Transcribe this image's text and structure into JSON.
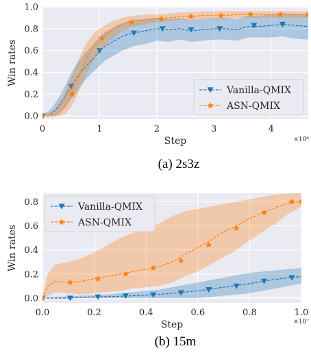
{
  "colors": {
    "vanilla": "#1f77b4",
    "asn": "#ff7f0e",
    "grid": "#ffffff",
    "background": "#eaeaf2"
  },
  "chart_data": [
    {
      "type": "line",
      "caption": "(a) 2s3z",
      "xlabel": "Step",
      "ylabel": "Win rates",
      "x_multiplier": "×10⁶",
      "xlim": [
        0,
        4.65
      ],
      "ylim": [
        -0.03,
        1.0
      ],
      "xticks": [
        "0",
        "1",
        "2",
        "3",
        "4"
      ],
      "xtick_values": [
        0,
        1,
        2,
        3,
        4
      ],
      "yticks": [
        "0.0",
        "0.2",
        "0.4",
        "0.6",
        "0.8",
        "1.0"
      ],
      "ytick_values": [
        0,
        0.2,
        0.4,
        0.6,
        0.8,
        1.0
      ],
      "grid": true,
      "legend_position": "lower-right",
      "series": [
        {
          "name": "Vanilla-QMIX",
          "color": "vanilla",
          "marker": "triangle-down",
          "x": [
            0,
            0.1,
            0.2,
            0.3,
            0.4,
            0.5,
            0.6,
            0.7,
            0.8,
            0.9,
            1.0,
            1.1,
            1.2,
            1.3,
            1.4,
            1.5,
            1.6,
            1.8,
            2.0,
            2.2,
            2.4,
            2.6,
            2.8,
            3.0,
            3.2,
            3.4,
            3.6,
            3.8,
            4.0,
            4.2,
            4.4,
            4.65
          ],
          "y": [
            0,
            0.0,
            0.04,
            0.1,
            0.18,
            0.27,
            0.35,
            0.42,
            0.48,
            0.53,
            0.6,
            0.64,
            0.67,
            0.7,
            0.73,
            0.75,
            0.76,
            0.78,
            0.8,
            0.79,
            0.8,
            0.78,
            0.79,
            0.8,
            0.8,
            0.79,
            0.82,
            0.82,
            0.83,
            0.84,
            0.83,
            0.82
          ],
          "lower": [
            0,
            0.0,
            0.0,
            0.03,
            0.08,
            0.15,
            0.22,
            0.3,
            0.36,
            0.41,
            0.46,
            0.51,
            0.54,
            0.57,
            0.6,
            0.62,
            0.64,
            0.66,
            0.69,
            0.68,
            0.7,
            0.68,
            0.69,
            0.7,
            0.7,
            0.69,
            0.72,
            0.72,
            0.72,
            0.73,
            0.71,
            0.7
          ],
          "upper": [
            0.02,
            0.04,
            0.1,
            0.18,
            0.28,
            0.39,
            0.48,
            0.55,
            0.61,
            0.66,
            0.73,
            0.77,
            0.8,
            0.83,
            0.85,
            0.87,
            0.88,
            0.89,
            0.9,
            0.89,
            0.9,
            0.88,
            0.89,
            0.9,
            0.9,
            0.89,
            0.92,
            0.92,
            0.93,
            0.94,
            0.93,
            0.93
          ],
          "marker_x": [
            0,
            0.5,
            1.0,
            1.6,
            2.1,
            2.6,
            3.1,
            3.7,
            4.2
          ],
          "marker_y": [
            0,
            0.27,
            0.6,
            0.76,
            0.8,
            0.79,
            0.8,
            0.83,
            0.84
          ]
        },
        {
          "name": "ASN-QMIX",
          "color": "asn",
          "marker": "star",
          "x": [
            0,
            0.1,
            0.2,
            0.3,
            0.4,
            0.5,
            0.6,
            0.7,
            0.8,
            0.9,
            1.0,
            1.1,
            1.2,
            1.3,
            1.4,
            1.5,
            1.6,
            1.8,
            2.0,
            2.2,
            2.4,
            2.6,
            2.8,
            3.0,
            3.2,
            3.4,
            3.6,
            3.8,
            4.0,
            4.2,
            4.4,
            4.65
          ],
          "y": [
            0,
            0.0,
            0.0,
            0.03,
            0.1,
            0.2,
            0.32,
            0.45,
            0.56,
            0.64,
            0.7,
            0.74,
            0.78,
            0.81,
            0.84,
            0.86,
            0.87,
            0.88,
            0.89,
            0.9,
            0.91,
            0.91,
            0.92,
            0.92,
            0.92,
            0.93,
            0.93,
            0.93,
            0.93,
            0.93,
            0.93,
            0.93
          ],
          "lower": [
            0,
            0.0,
            0.0,
            0.0,
            0.02,
            0.08,
            0.18,
            0.3,
            0.42,
            0.52,
            0.6,
            0.65,
            0.7,
            0.74,
            0.78,
            0.8,
            0.82,
            0.84,
            0.86,
            0.87,
            0.88,
            0.88,
            0.89,
            0.89,
            0.89,
            0.9,
            0.9,
            0.9,
            0.9,
            0.9,
            0.9,
            0.9
          ],
          "upper": [
            0.01,
            0.02,
            0.05,
            0.12,
            0.22,
            0.35,
            0.48,
            0.6,
            0.69,
            0.76,
            0.8,
            0.83,
            0.86,
            0.88,
            0.9,
            0.91,
            0.92,
            0.93,
            0.93,
            0.94,
            0.95,
            0.95,
            0.96,
            0.96,
            0.96,
            0.96,
            0.96,
            0.96,
            0.96,
            0.96,
            0.96,
            0.96
          ],
          "marker_x": [
            0,
            0.52,
            1.04,
            1.56,
            2.08,
            2.6,
            3.12,
            3.64,
            4.16,
            4.65
          ],
          "marker_y": [
            0,
            0.2,
            0.71,
            0.86,
            0.89,
            0.91,
            0.92,
            0.93,
            0.93,
            0.93
          ]
        }
      ]
    },
    {
      "type": "line",
      "caption": "(b) 15m",
      "xlabel": "Step",
      "ylabel": "Win rates",
      "x_multiplier": "×10⁷",
      "xlim": [
        0,
        1.0
      ],
      "ylim": [
        -0.04,
        0.87
      ],
      "xticks": [
        "0.0",
        "0.2",
        "0.4",
        "0.6",
        "0.8",
        "1.0"
      ],
      "xtick_values": [
        0,
        0.2,
        0.4,
        0.6,
        0.8,
        1.0
      ],
      "yticks": [
        "0.0",
        "0.2",
        "0.4",
        "0.6",
        "0.8"
      ],
      "ytick_values": [
        0,
        0.2,
        0.4,
        0.6,
        0.8
      ],
      "grid": true,
      "legend_position": "upper-left",
      "series": [
        {
          "name": "Vanilla-QMIX",
          "color": "vanilla",
          "marker": "triangle-down",
          "x": [
            0,
            0.05,
            0.1,
            0.15,
            0.2,
            0.25,
            0.3,
            0.35,
            0.4,
            0.45,
            0.5,
            0.55,
            0.6,
            0.65,
            0.7,
            0.75,
            0.8,
            0.85,
            0.9,
            0.95,
            1.0
          ],
          "y": [
            0,
            0.0,
            0.0,
            0.005,
            0.01,
            0.012,
            0.015,
            0.02,
            0.025,
            0.03,
            0.04,
            0.05,
            0.06,
            0.075,
            0.09,
            0.105,
            0.12,
            0.14,
            0.155,
            0.17,
            0.18
          ],
          "lower": [
            0,
            0.0,
            0.0,
            0.0,
            0.0,
            0.0,
            0.0,
            0.0,
            0.0,
            0.0,
            0.0,
            0.0,
            0.0,
            0.01,
            0.02,
            0.03,
            0.04,
            0.06,
            0.08,
            0.1,
            0.12
          ],
          "upper": [
            0.005,
            0.01,
            0.015,
            0.02,
            0.025,
            0.03,
            0.04,
            0.05,
            0.06,
            0.07,
            0.09,
            0.11,
            0.13,
            0.15,
            0.17,
            0.19,
            0.21,
            0.22,
            0.23,
            0.24,
            0.25
          ],
          "marker_x": [
            0,
            0.107,
            0.214,
            0.321,
            0.428,
            0.535,
            0.642,
            0.749,
            0.856,
            0.963
          ],
          "marker_y": [
            0,
            0.0,
            0.01,
            0.018,
            0.027,
            0.045,
            0.07,
            0.1,
            0.14,
            0.17
          ]
        },
        {
          "name": "ASN-QMIX",
          "color": "asn",
          "marker": "star",
          "x": [
            0,
            0.02,
            0.05,
            0.1,
            0.15,
            0.2,
            0.25,
            0.3,
            0.35,
            0.4,
            0.45,
            0.5,
            0.55,
            0.6,
            0.65,
            0.7,
            0.75,
            0.8,
            0.85,
            0.9,
            0.95,
            1.0
          ],
          "y": [
            0,
            0.1,
            0.14,
            0.13,
            0.14,
            0.16,
            0.18,
            0.2,
            0.22,
            0.24,
            0.26,
            0.3,
            0.36,
            0.42,
            0.48,
            0.55,
            0.6,
            0.66,
            0.71,
            0.75,
            0.79,
            0.8
          ],
          "lower": [
            0,
            0.02,
            0.05,
            0.04,
            0.03,
            0.04,
            0.05,
            0.06,
            0.08,
            0.09,
            0.1,
            0.13,
            0.18,
            0.22,
            0.28,
            0.34,
            0.4,
            0.48,
            0.55,
            0.62,
            0.7,
            0.76
          ],
          "upper": [
            0.01,
            0.2,
            0.28,
            0.3,
            0.33,
            0.38,
            0.44,
            0.5,
            0.54,
            0.58,
            0.62,
            0.68,
            0.72,
            0.74,
            0.76,
            0.78,
            0.8,
            0.82,
            0.84,
            0.86,
            0.87,
            0.87
          ],
          "marker_x": [
            0,
            0.107,
            0.214,
            0.321,
            0.428,
            0.535,
            0.642,
            0.749,
            0.856,
            0.963,
            1.0
          ],
          "marker_y": [
            0,
            0.13,
            0.16,
            0.2,
            0.25,
            0.31,
            0.44,
            0.58,
            0.71,
            0.8,
            0.8
          ]
        }
      ]
    }
  ]
}
